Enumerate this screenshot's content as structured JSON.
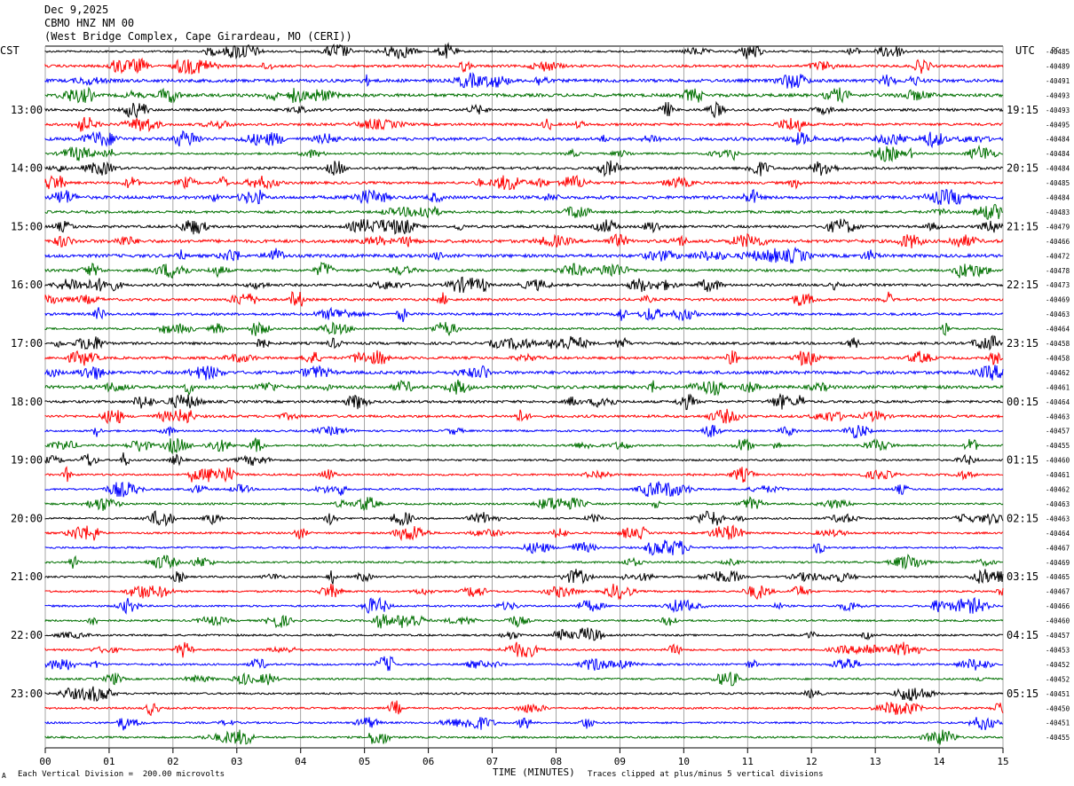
{
  "header": {
    "date": "Dec 9,2025",
    "station": "CBMO HNZ NM 00",
    "location": "(West Bridge Complex, Cape Girardeau, MO (CERI))"
  },
  "left_axis_title": "CST",
  "right_axis_title": "UTC",
  "dc_title": "DC",
  "footer": {
    "scale": "Each Vertical Division =  200.00 microvolts",
    "clip": "Traces clipped at plus/minus 5 vertical divisions",
    "mark": "A"
  },
  "chart_data": {
    "type": "seismogram",
    "xlabel": "TIME (MINUTES)",
    "xlim": [
      0,
      15
    ],
    "x_ticks": [
      "00",
      "01",
      "02",
      "03",
      "04",
      "05",
      "06",
      "07",
      "08",
      "09",
      "10",
      "11",
      "12",
      "13",
      "14",
      "15"
    ],
    "left_hour_labels": [
      "13:00",
      "14:00",
      "15:00",
      "16:00",
      "17:00",
      "18:00",
      "19:00",
      "20:00",
      "21:00",
      "22:00",
      "23:00"
    ],
    "right_hour_labels": [
      "19:15",
      "20:15",
      "21:15",
      "22:15",
      "23:15",
      "00:15",
      "01:15",
      "02:15",
      "03:15",
      "04:15",
      "05:15"
    ],
    "hour_label_first_row": 4,
    "rows_per_hour": 4,
    "trace_colors": [
      "#000000",
      "#ff0000",
      "#0000ff",
      "#007000"
    ],
    "dc_offsets": [
      "-40485",
      "-40489",
      "-40491",
      "-40493",
      "-40493",
      "-40495",
      "-40484",
      "-40484",
      "-40484",
      "-40485",
      "-40484",
      "-40483",
      "-40479",
      "-40466",
      "-40472",
      "-40478",
      "-40473",
      "-40469",
      "-40463",
      "-40464",
      "-40458",
      "-40458",
      "-40462",
      "-40461",
      "-40464",
      "-40463",
      "-40457",
      "-40455",
      "-40460",
      "-40461",
      "-40462",
      "-40463",
      "-40463",
      "-40464",
      "-40467",
      "-40469",
      "-40465",
      "-40467",
      "-40466",
      "-40460",
      "-40457",
      "-40453",
      "-40452",
      "-40452",
      "-40451",
      "-40450",
      "-40451",
      "-40455"
    ],
    "trace_amplitude": [
      3,
      4,
      5,
      5,
      4,
      4,
      5,
      3,
      4,
      4,
      5,
      4,
      4,
      5,
      5,
      4,
      4,
      4,
      4,
      3,
      4,
      4,
      5,
      5,
      4,
      4,
      3,
      3,
      3,
      3,
      3,
      3,
      3,
      3,
      3,
      3,
      3,
      3,
      3,
      3,
      3,
      3,
      3,
      3,
      3,
      3,
      3,
      3
    ]
  }
}
